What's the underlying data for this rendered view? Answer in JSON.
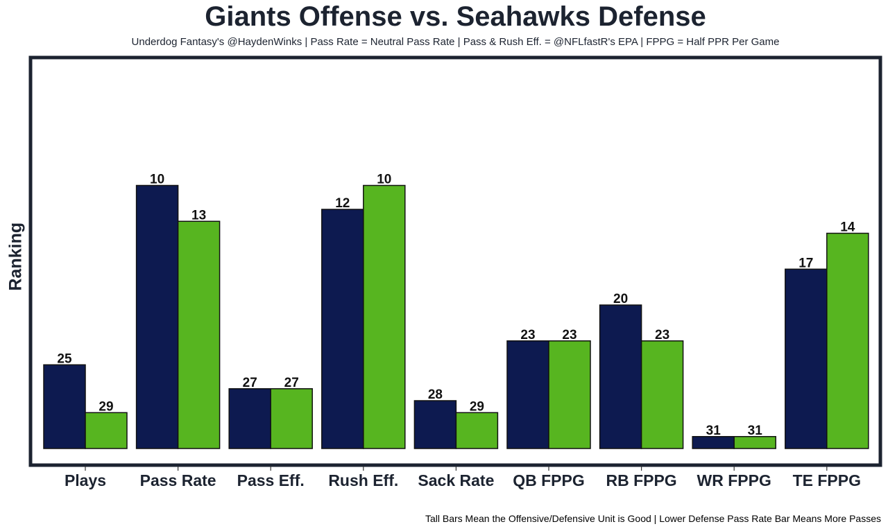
{
  "chart_data": {
    "type": "bar",
    "title": "Giants Offense vs. Seahawks Defense",
    "subtitle": "Underdog Fantasy's @HaydenWinks | Pass Rate = Neutral Pass Rate | Pass & Rush Eff. = @NFLfastR's EPA | FPPG = Half PPR Per Game",
    "xlabel": "",
    "ylabel": "Ranking",
    "caption": "Tall Bars Mean the Offensive/Defensive Unit is Good | Lower Defense Pass Rate Bar Means More Passes",
    "categories": [
      "Plays",
      "Pass Rate",
      "Pass Eff.",
      "Rush Eff.",
      "Sack Rate",
      "QB FPPG",
      "RB FPPG",
      "WR FPPG",
      "TE FPPG"
    ],
    "series": [
      {
        "name": "Giants Offense",
        "color": "#0d1a50",
        "values": [
          25,
          10,
          27,
          12,
          28,
          23,
          20,
          31,
          17
        ]
      },
      {
        "name": "Seahawks Defense",
        "color": "#57b520",
        "values": [
          29,
          13,
          27,
          10,
          29,
          23,
          23,
          31,
          14
        ]
      }
    ],
    "y_scale": "inverted rank (rank 1 tallest, rank 32 zero height)",
    "grid": false,
    "legend": "none"
  }
}
